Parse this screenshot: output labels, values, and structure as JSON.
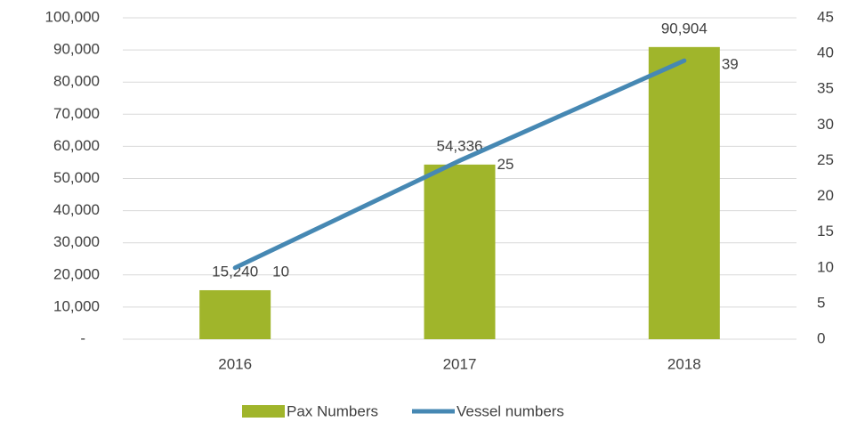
{
  "chart_data": {
    "type": "bar",
    "categories": [
      "2016",
      "2017",
      "2018"
    ],
    "series": [
      {
        "name": "Pax Numbers",
        "type": "bar",
        "color": "#a0b52b",
        "values": [
          15240,
          54336,
          90904
        ],
        "value_labels": [
          "15,240",
          "54,336",
          "90,904"
        ]
      },
      {
        "name": "Vessel numbers",
        "type": "line",
        "axis": "y2",
        "color": "#4688b3",
        "values": [
          10,
          25,
          39
        ]
      }
    ],
    "ylim": [
      0,
      100000
    ],
    "yticks": [
      {
        "value": 0,
        "label": "-"
      },
      {
        "value": 10000,
        "label": "10,000"
      },
      {
        "value": 20000,
        "label": "20,000"
      },
      {
        "value": 30000,
        "label": "30,000"
      },
      {
        "value": 40000,
        "label": "40,000"
      },
      {
        "value": 50000,
        "label": "50,000"
      },
      {
        "value": 60000,
        "label": "60,000"
      },
      {
        "value": 70000,
        "label": "70,000"
      },
      {
        "value": 80000,
        "label": "80,000"
      },
      {
        "value": 90000,
        "label": "90,000"
      },
      {
        "value": 100000,
        "label": "100,000"
      }
    ],
    "y2lim": [
      0,
      45
    ],
    "y2ticks": [
      0,
      5,
      10,
      15,
      20,
      25,
      30,
      35,
      40,
      45
    ],
    "grid": true,
    "legend": "bottom"
  }
}
